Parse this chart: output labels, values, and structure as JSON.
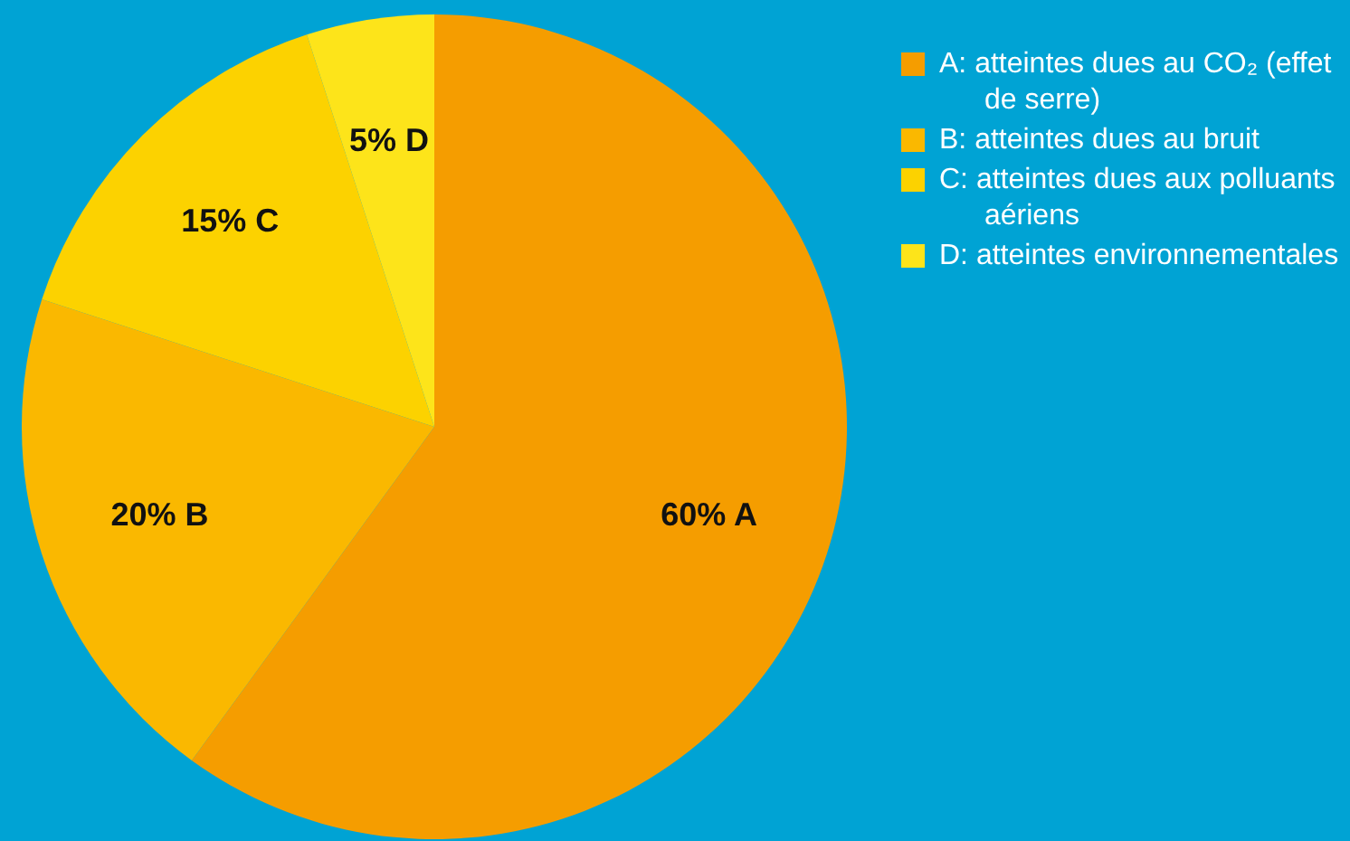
{
  "chart_data": {
    "type": "pie",
    "categories": [
      "A: atteintes dues au CO₂ (effet de serre)",
      "B: atteintes dues au bruit",
      "C: atteintes dues aux polluants aériens",
      "D: atteintes environnementales"
    ],
    "values": [
      60,
      20,
      15,
      5
    ],
    "colors": [
      "#f59d00",
      "#fab800",
      "#fcd200",
      "#fde41a"
    ],
    "value_labels": [
      "60% A",
      "20% B",
      "15% C",
      "5% D"
    ],
    "legend": "right"
  }
}
